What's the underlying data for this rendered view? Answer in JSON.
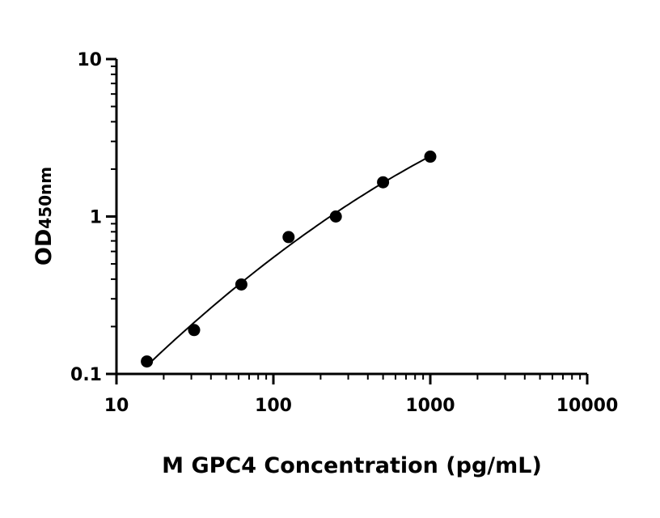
{
  "chart_data": {
    "type": "scatter",
    "xlabel": "M GPC4 Concentration (pg/mL)",
    "ylabel": {
      "main": "OD",
      "sub": "450nm"
    },
    "xscale": "log",
    "yscale": "log",
    "xlim": [
      10,
      10000
    ],
    "ylim": [
      0.1,
      10
    ],
    "xticks": [
      "10",
      "100",
      "1000",
      "10000"
    ],
    "yticks": [
      "0.1",
      "1",
      "10"
    ],
    "grid": false,
    "series": [
      {
        "x": [
          15.625,
          31.25,
          62.5,
          125,
          250,
          500,
          1000
        ],
        "y": [
          0.12,
          0.19,
          0.37,
          0.74,
          1.0,
          1.65,
          2.4
        ]
      }
    ],
    "fit_curve": true,
    "color": "#000000"
  }
}
